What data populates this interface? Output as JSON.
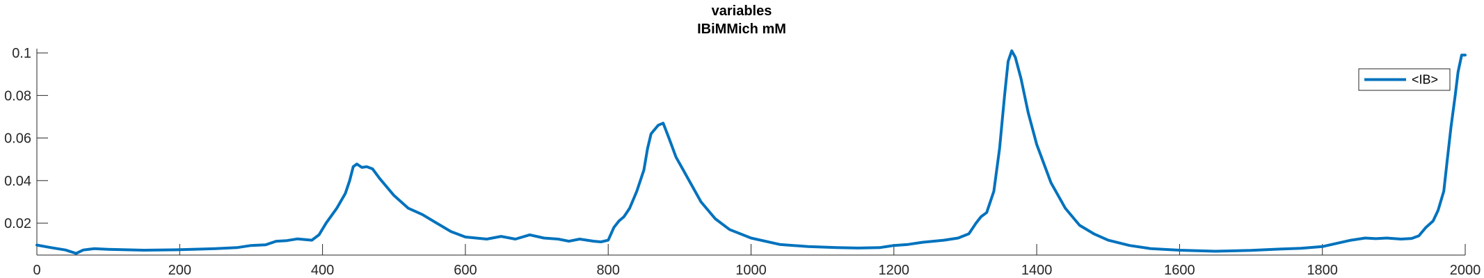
{
  "chart_data": {
    "type": "line",
    "title": "variables",
    "subtitle": "IBiMMich mM",
    "xlabel": "",
    "ylabel": "",
    "xlim": [
      0,
      2000
    ],
    "ylim": [
      0.005,
      0.102
    ],
    "xticks": [
      0,
      200,
      400,
      600,
      800,
      1000,
      1200,
      1400,
      1600,
      1800,
      2000
    ],
    "xtick_labels": [
      "0",
      "200",
      "400",
      "600",
      "800",
      "1000",
      "1200",
      "1400",
      "1600",
      "1800",
      "2000"
    ],
    "yticks": [
      0.02,
      0.04,
      0.06,
      0.08,
      0.1
    ],
    "ytick_labels": [
      "0.02",
      "0.04",
      "0.06",
      "0.08",
      "0.1"
    ],
    "grid": false,
    "legend_position": "top-right",
    "colors": {
      "series": "#0072BD",
      "axis": "#262626"
    },
    "series": [
      {
        "name": "<IB>",
        "x": [
          0,
          20,
          40,
          55,
          65,
          80,
          100,
          150,
          200,
          230,
          250,
          280,
          300,
          320,
          335,
          350,
          365,
          385,
          395,
          405,
          420,
          432,
          438,
          443,
          448,
          455,
          462,
          470,
          480,
          500,
          520,
          540,
          560,
          580,
          600,
          615,
          630,
          650,
          670,
          690,
          710,
          730,
          745,
          760,
          780,
          790,
          800,
          808,
          815,
          822,
          830,
          840,
          850,
          855,
          860,
          870,
          877,
          885,
          895,
          905,
          915,
          930,
          950,
          970,
          1000,
          1040,
          1080,
          1120,
          1150,
          1180,
          1200,
          1220,
          1240,
          1270,
          1290,
          1305,
          1315,
          1322,
          1330,
          1340,
          1348,
          1355,
          1360,
          1365,
          1370,
          1378,
          1388,
          1400,
          1420,
          1440,
          1460,
          1480,
          1500,
          1530,
          1560,
          1600,
          1650,
          1700,
          1740,
          1770,
          1800,
          1820,
          1840,
          1860,
          1875,
          1890,
          1910,
          1925,
          1935,
          1945,
          1955,
          1962,
          1970,
          1975,
          1980,
          1986,
          1990,
          1995,
          2000
        ],
        "y": [
          0.0097,
          0.0085,
          0.0074,
          0.0058,
          0.0074,
          0.008,
          0.0077,
          0.0073,
          0.0075,
          0.0078,
          0.008,
          0.0085,
          0.0095,
          0.0098,
          0.0115,
          0.0118,
          0.0126,
          0.012,
          0.0145,
          0.02,
          0.027,
          0.034,
          0.04,
          0.0465,
          0.0478,
          0.0462,
          0.0465,
          0.0455,
          0.041,
          0.033,
          0.027,
          0.024,
          0.02,
          0.016,
          0.0135,
          0.013,
          0.0125,
          0.0138,
          0.0125,
          0.0145,
          0.013,
          0.0125,
          0.0115,
          0.0125,
          0.0115,
          0.0112,
          0.012,
          0.018,
          0.021,
          0.023,
          0.027,
          0.035,
          0.045,
          0.055,
          0.062,
          0.066,
          0.067,
          0.06,
          0.051,
          0.045,
          0.039,
          0.03,
          0.022,
          0.017,
          0.013,
          0.01,
          0.009,
          0.0085,
          0.0083,
          0.0085,
          0.0095,
          0.01,
          0.011,
          0.012,
          0.013,
          0.015,
          0.02,
          0.023,
          0.025,
          0.035,
          0.055,
          0.08,
          0.096,
          0.101,
          0.098,
          0.088,
          0.072,
          0.057,
          0.039,
          0.027,
          0.019,
          0.015,
          0.012,
          0.0095,
          0.008,
          0.0073,
          0.0068,
          0.0072,
          0.0078,
          0.0082,
          0.009,
          0.0105,
          0.012,
          0.013,
          0.0127,
          0.013,
          0.0125,
          0.0128,
          0.014,
          0.018,
          0.021,
          0.026,
          0.035,
          0.05,
          0.065,
          0.08,
          0.091,
          0.099,
          0.099
        ]
      }
    ]
  }
}
